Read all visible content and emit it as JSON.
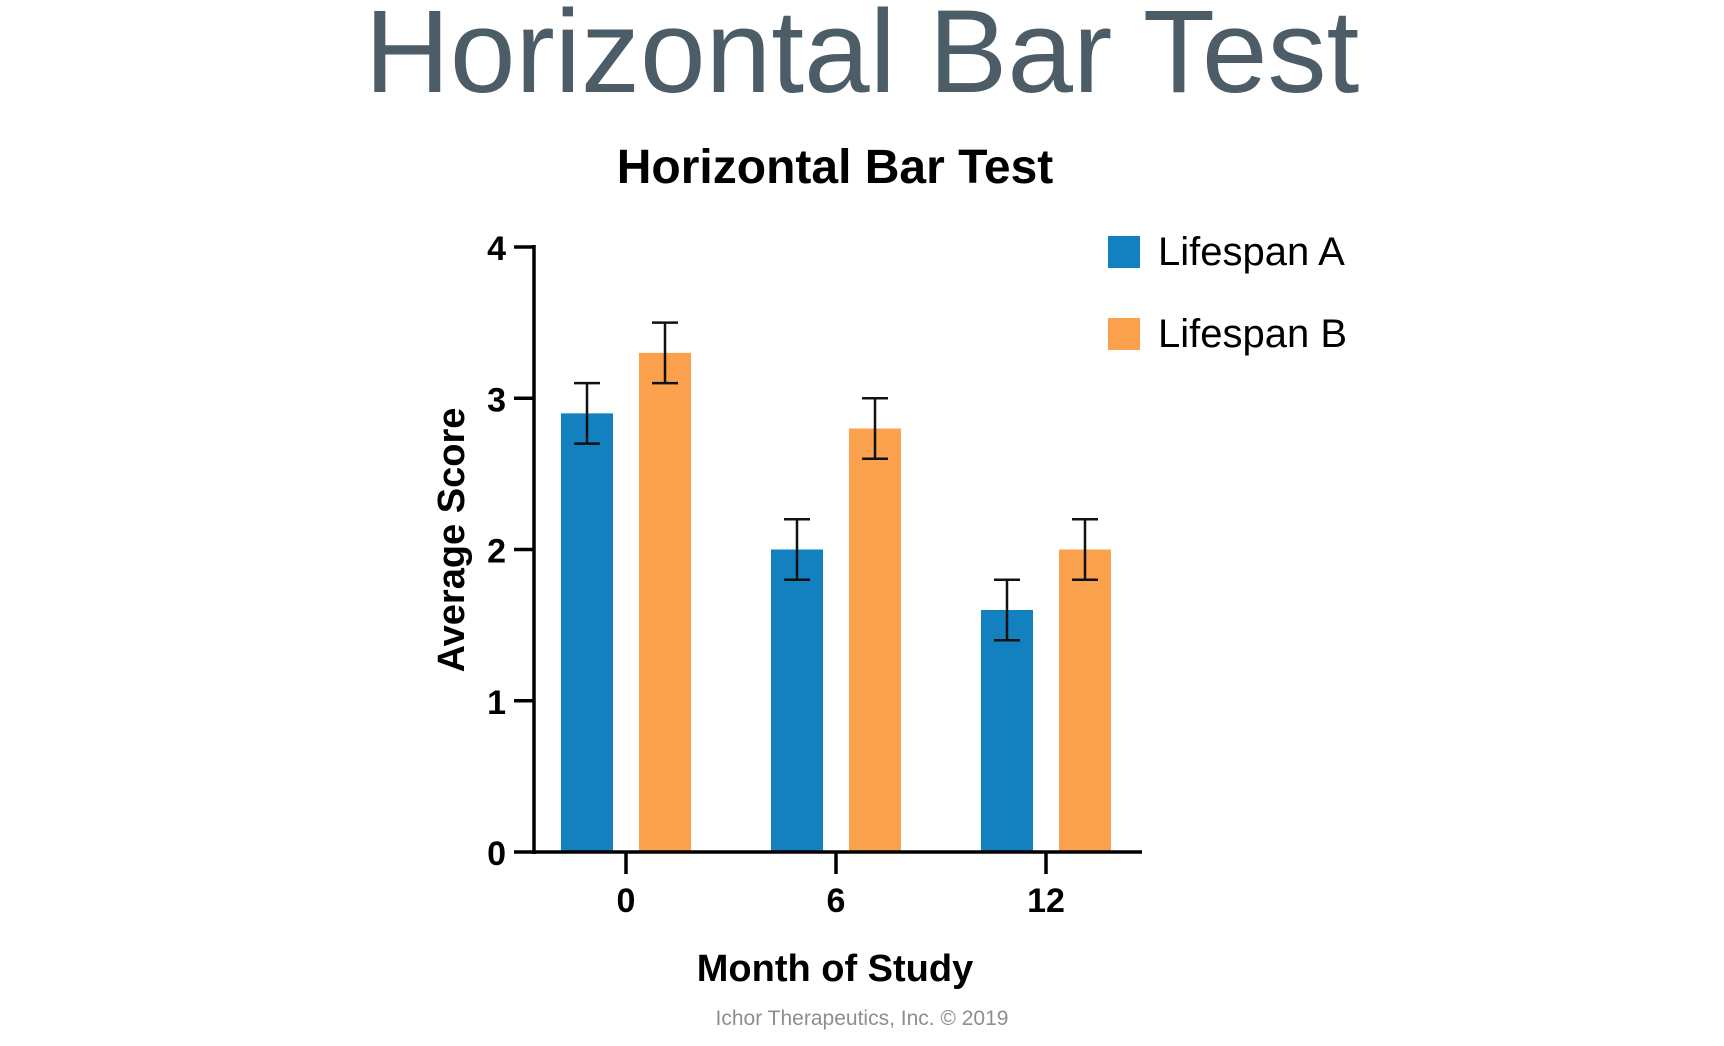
{
  "slide": {
    "title": "Horizontal Bar Test",
    "footer": "Ichor Therapeutics, Inc. © 2019"
  },
  "chart_data": {
    "type": "bar",
    "title": "Horizontal Bar Test",
    "xlabel": "Month of Study",
    "ylabel": "Average Score",
    "categories": [
      "0",
      "6",
      "12"
    ],
    "ylim": [
      0,
      4
    ],
    "yticks": [
      "0",
      "1",
      "2",
      "3",
      "4"
    ],
    "grid": false,
    "legend_position": "top-right",
    "series": [
      {
        "name": "Lifespan A",
        "color": "#1380c0",
        "values": [
          2.9,
          2.0,
          1.6
        ],
        "errors": [
          0.2,
          0.2,
          0.2
        ]
      },
      {
        "name": "Lifespan B",
        "color": "#fba04d",
        "values": [
          3.3,
          2.8,
          2.0
        ],
        "errors": [
          0.2,
          0.2,
          0.2
        ]
      }
    ]
  }
}
